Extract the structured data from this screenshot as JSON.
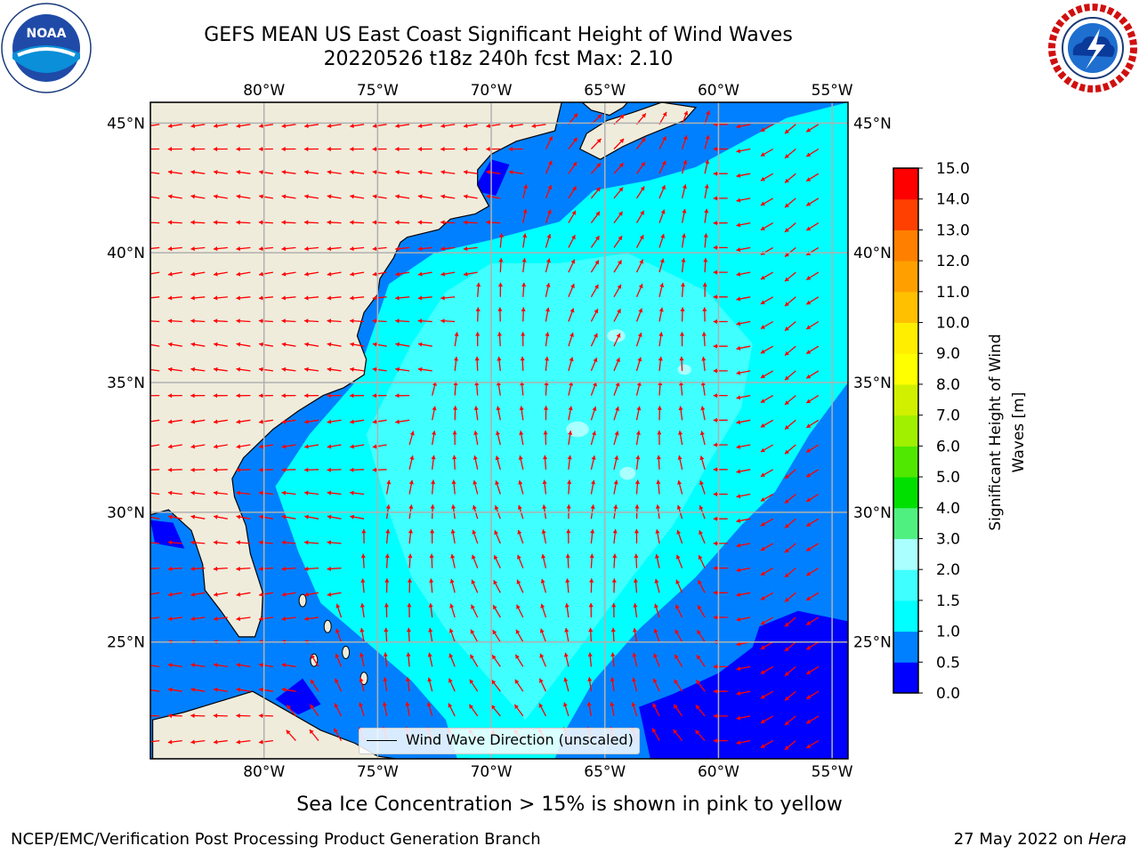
{
  "title": {
    "line1": "GEFS MEAN US East Coast Significant Height of Wind Waves",
    "line2": "20220526 t18z 240h fcst   Max: 2.10"
  },
  "logos": {
    "left": {
      "name": "noaa-logo",
      "text": "NOAA",
      "ring_text": "NATIONAL OCEANIC AND ATMOSPHERIC ADMINISTRATION · U.S. DEPARTMENT OF COMMERCE"
    },
    "right": {
      "name": "nws-logo",
      "ring_text": "NATIONAL WEATHER SERVICE"
    }
  },
  "map": {
    "projection": "equirectangular",
    "lon_range": [
      -85,
      -54.3
    ],
    "lat_range": [
      20.5,
      45.8
    ],
    "gridlines": true,
    "lon_ticks": [
      "80°W",
      "75°W",
      "70°W",
      "65°W",
      "60°W",
      "55°W"
    ],
    "lat_ticks": [
      "45°N",
      "40°N",
      "35°N",
      "30°N",
      "25°N"
    ],
    "lon_tick_values": [
      -80,
      -75,
      -70,
      -65,
      -60,
      -55
    ],
    "lat_tick_values": [
      45,
      40,
      35,
      30,
      25
    ],
    "land_color": "#efecdc",
    "vector_color": "#ff0000"
  },
  "legend": {
    "label": "Wind Wave Direction (unscaled)",
    "placement": "lower-center"
  },
  "colorbar": {
    "title": "Significant Height of Wind Waves [m]",
    "title_line1": "Significant Height of Wind",
    "title_line2": "Waves [m]",
    "tick_labels": [
      "0.0",
      "0.5",
      "1.0",
      "1.5",
      "2.0",
      "3.0",
      "4.0",
      "5.0",
      "6.0",
      "7.0",
      "8.0",
      "9.0",
      "10.0",
      "11.0",
      "12.0",
      "13.0",
      "14.0",
      "15.0"
    ],
    "colors": [
      "#0000ff",
      "#0080ff",
      "#00ffff",
      "#40ffff",
      "#aaffff",
      "#50f080",
      "#00e000",
      "#50e800",
      "#a0f000",
      "#d0f000",
      "#ffff00",
      "#ffee00",
      "#ffc000",
      "#ffa000",
      "#ff8000",
      "#ff4000",
      "#ff0000"
    ]
  },
  "chart_data": {
    "type": "heatmap",
    "title": "GEFS MEAN US East Coast Significant Height of Wind Waves",
    "subtitle": "20220526 t18z 240h fcst   Max: 2.10",
    "variable": "Significant Height of Wind Waves [m]",
    "max_value": 2.1,
    "value_levels": [
      0.0,
      0.5,
      1.0,
      1.5,
      2.0,
      3.0,
      4.0,
      5.0,
      6.0,
      7.0,
      8.0,
      9.0,
      10.0,
      11.0,
      12.0,
      13.0,
      14.0,
      15.0
    ],
    "xlabel": "",
    "ylabel": "",
    "xlim": [
      -85,
      -54.3
    ],
    "ylim": [
      20.5,
      45.8
    ]
  },
  "footnote": "Sea Ice Concentration > 15% is shown in pink to yellow",
  "footer": {
    "left": "NCEP/EMC/Verification Post Processing Product Generation Branch",
    "right_date": "27 May 2022 on ",
    "right_machine": "Hera"
  }
}
